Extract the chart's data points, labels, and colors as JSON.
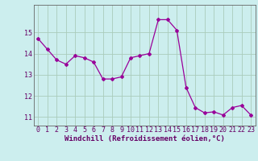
{
  "x": [
    0,
    1,
    2,
    3,
    4,
    5,
    6,
    7,
    8,
    9,
    10,
    11,
    12,
    13,
    14,
    15,
    16,
    17,
    18,
    19,
    20,
    21,
    22,
    23
  ],
  "y": [
    14.7,
    14.2,
    13.7,
    13.5,
    13.9,
    13.8,
    13.6,
    12.8,
    12.8,
    12.9,
    13.8,
    13.9,
    14.0,
    15.6,
    15.6,
    15.1,
    12.4,
    11.45,
    11.2,
    11.25,
    11.1,
    11.45,
    11.55,
    11.1
  ],
  "line_color": "#990099",
  "marker": "D",
  "marker_size": 2,
  "bg_color": "#cceeee",
  "grid_color": "#aaccbb",
  "xlabel": "Windchill (Refroidissement éolien,°C)",
  "xlabel_fontsize": 6.5,
  "ylim_min": 10.6,
  "ylim_max": 16.3,
  "xlim_min": -0.5,
  "xlim_max": 23.5,
  "yticks": [
    11,
    12,
    13,
    14,
    15
  ],
  "xticks": [
    0,
    1,
    2,
    3,
    4,
    5,
    6,
    7,
    8,
    9,
    10,
    11,
    12,
    13,
    14,
    15,
    16,
    17,
    18,
    19,
    20,
    21,
    22,
    23
  ],
  "tick_fontsize": 6,
  "tick_color": "#660066",
  "spine_color": "#666666"
}
